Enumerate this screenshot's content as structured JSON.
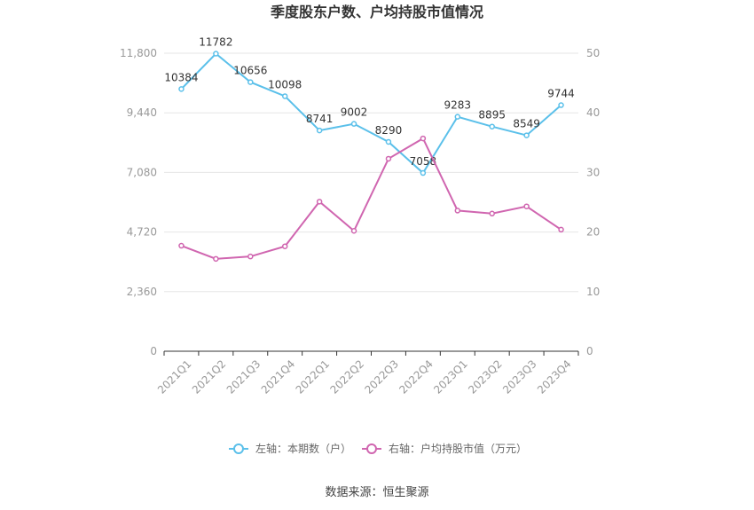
{
  "chart_data": {
    "type": "line",
    "title": "季度股东户数、户均持股市值情况",
    "categories": [
      "2021Q1",
      "2021Q2",
      "2021Q3",
      "2021Q4",
      "2022Q1",
      "2022Q2",
      "2022Q3",
      "2022Q4",
      "2023Q1",
      "2023Q2",
      "2023Q3",
      "2023Q4"
    ],
    "y_left": {
      "ticks": [
        "0",
        "2,360",
        "4,720",
        "7,080",
        "9,440",
        "11,800"
      ],
      "range": [
        0,
        11800
      ]
    },
    "y_right": {
      "ticks": [
        "0",
        "10",
        "20",
        "30",
        "40",
        "50"
      ],
      "range": [
        0,
        50
      ]
    },
    "series": [
      {
        "name": "左轴：本期数（户）",
        "axis": "left",
        "color": "#5bc0ea",
        "values": [
          10384,
          11782,
          10656,
          10098,
          8741,
          9002,
          8290,
          7058,
          9283,
          8895,
          8549,
          9744
        ],
        "labels": [
          "10384",
          "11782",
          "10656",
          "10098",
          "8741",
          "9002",
          "8290",
          "7058",
          "9283",
          "8895",
          "8549",
          "9744"
        ]
      },
      {
        "name": "右轴：户均持股市值（万元）",
        "axis": "right",
        "color": "#d066b0",
        "values": [
          17.7,
          15.5,
          15.9,
          17.6,
          25.1,
          20.2,
          32.3,
          35.7,
          23.6,
          23.1,
          24.3,
          20.4
        ]
      }
    ],
    "grid": true,
    "legend_position": "bottom"
  },
  "source": "数据来源：恒生聚源"
}
